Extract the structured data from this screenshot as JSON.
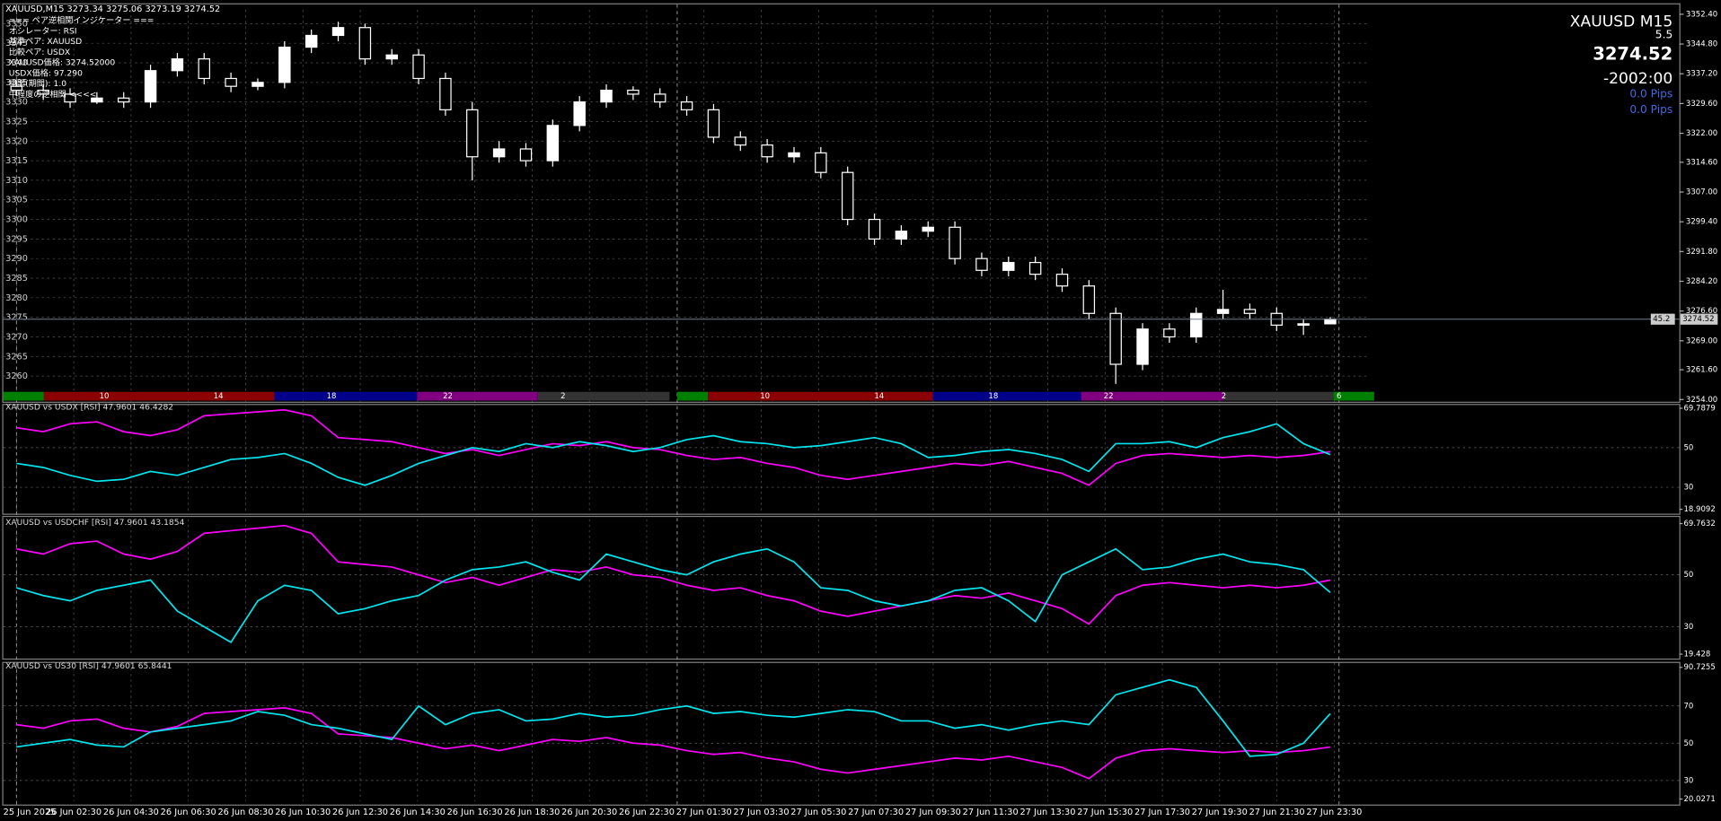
{
  "info": {
    "symbol": "XAUUSD M15",
    "spread": "5.5",
    "price": "3274.52",
    "timer": "-2002:00",
    "pips_1": "0.0 Pips",
    "pips_2": "0.0 Pips"
  },
  "overlay_lines": [
    "=== ペア逆相関インジケーター ===",
    "オシレーター: RSI",
    "基準ペア: XAUUSD",
    "比較ペア: USDX",
    "XAUUSD価格: 3274.52000",
    "USDX価格: 97.290",
    "相関(期間): 1.0",
    "中程度の逆相関 <<<<"
  ],
  "x_labels": [
    "25 Jun 2025",
    "26 Jun 02:30",
    "26 Jun 04:30",
    "26 Jun 06:30",
    "26 Jun 08:30",
    "26 Jun 10:30",
    "26 Jun 12:30",
    "26 Jun 14:30",
    "26 Jun 16:30",
    "26 Jun 18:30",
    "26 Jun 20:30",
    "26 Jun 22:30",
    "27 Jun 01:30",
    "27 Jun 03:30",
    "27 Jun 05:30",
    "27 Jun 07:30",
    "27 Jun 09:30",
    "27 Jun 11:30",
    "27 Jun 13:30",
    "27 Jun 15:30",
    "27 Jun 17:30",
    "27 Jun 19:30",
    "27 Jun 21:30",
    "27 Jun 23:30"
  ],
  "session_labels": [
    "10",
    "14",
    "18",
    "22",
    "2",
    "10",
    "14",
    "18",
    "22",
    "2",
    "6"
  ],
  "chart_data": [
    {
      "type": "candlestick",
      "title": "XAUUSD,M15  3273.34 3275.06 3273.19 3274.52",
      "color": "#ffffff",
      "open": [
        3334,
        3333,
        3332,
        3330,
        3331,
        3330,
        3338,
        3341,
        3336,
        3334,
        3335,
        3344,
        3347,
        3349,
        3341,
        3342,
        3336,
        3328,
        3316,
        3318,
        3315,
        3324,
        3330,
        3333,
        3332,
        3330,
        3328,
        3321,
        3319,
        3316,
        3317,
        3312,
        3300,
        3295,
        3297,
        3298,
        3290,
        3287,
        3289,
        3286,
        3283,
        3276,
        3263,
        3272,
        3270,
        3276,
        3277,
        3276,
        3273,
        3273.34
      ],
      "high": [
        3335.5,
        3334.5,
        3333.5,
        3332.5,
        3332.5,
        3339.5,
        3342.5,
        3342.5,
        3337.5,
        3336,
        3345.5,
        3348.5,
        3350.5,
        3350,
        3343.5,
        3343.5,
        3337.5,
        3330,
        3320,
        3319.5,
        3325.5,
        3331.5,
        3334.5,
        3334,
        3333.5,
        3331.5,
        3329.5,
        3322.5,
        3320.5,
        3318.5,
        3318.5,
        3313.5,
        3301.5,
        3298.5,
        3299.5,
        3299.5,
        3291.5,
        3290.5,
        3290.5,
        3287.5,
        3284.5,
        3277.5,
        3273.5,
        3273.5,
        3277.5,
        3282,
        3278.5,
        3277.5,
        3274.5,
        3275.06
      ],
      "low": [
        3331.5,
        3330.5,
        3328.5,
        3329.5,
        3328.5,
        3328.5,
        3336.5,
        3334.5,
        3332.5,
        3333,
        3333.5,
        3342.5,
        3345.5,
        3339.5,
        3339.5,
        3334.5,
        3326.5,
        3310,
        3314.5,
        3313.5,
        3313.5,
        3322.5,
        3328.5,
        3330.5,
        3328.5,
        3326.5,
        3319.5,
        3317.5,
        3314.5,
        3314.5,
        3310.5,
        3298.5,
        3293.5,
        3293.5,
        3295.5,
        3288.5,
        3285.5,
        3285.5,
        3284.5,
        3281.5,
        3274.5,
        3258,
        3261.5,
        3268.5,
        3268.5,
        3274.5,
        3274.5,
        3271.5,
        3270.5,
        3273.19
      ],
      "close": [
        3333,
        3332,
        3330,
        3331,
        3330,
        3338,
        3341,
        3336,
        3334,
        3335,
        3344,
        3347,
        3349,
        3341,
        3342,
        3336,
        3328,
        3316,
        3318,
        3315,
        3324,
        3330,
        3333,
        3332,
        3330,
        3328,
        3321,
        3319,
        3316,
        3317,
        3312,
        3300,
        3295,
        3297,
        3298,
        3290,
        3287,
        3289,
        3286,
        3283,
        3276,
        3263,
        3272,
        3270,
        3276,
        3277,
        3276,
        3273,
        3273.34,
        3274.52
      ],
      "ylim": [
        3254,
        3352.4
      ],
      "yticks": [
        {
          "value": 3352.4,
          "label": "3352.40"
        },
        {
          "value": 3344.8,
          "label": "3344.80"
        },
        {
          "value": 3337.2,
          "label": "3337.20"
        },
        {
          "value": 3329.6,
          "label": "3329.60"
        },
        {
          "value": 3322,
          "label": "3322.00"
        },
        {
          "value": 3314.6,
          "label": "3314.60"
        },
        {
          "value": 3307,
          "label": "3307.00"
        },
        {
          "value": 3299.4,
          "label": "3299.40"
        },
        {
          "value": 3291.8,
          "label": "3291.80"
        },
        {
          "value": 3284.2,
          "label": "3284.20"
        },
        {
          "value": 3276.6,
          "label": "3276.60"
        },
        {
          "value": 3269,
          "label": "3269.00"
        },
        {
          "value": 3261.6,
          "label": "3261.60"
        },
        {
          "value": 3254,
          "label": "3254.00"
        }
      ],
      "left_yticks": [
        3350,
        3345,
        3340,
        3335,
        3330,
        3325,
        3320,
        3315,
        3310,
        3305,
        3300,
        3295,
        3290,
        3285,
        3280,
        3275,
        3270,
        3265,
        3260
      ],
      "grid": true,
      "price_line": 3274.52,
      "price_tag": "45.2"
    },
    {
      "type": "line",
      "title": "XAUUSD vs USDX [RSI] 47.9601 46.4282",
      "series": [
        {
          "color": "#ff00ff",
          "values": [
            60,
            58,
            62,
            63,
            58,
            56,
            59,
            66,
            67,
            68,
            69,
            66,
            55,
            54,
            53,
            50,
            47,
            49,
            46,
            49,
            52,
            51,
            53,
            50,
            49,
            46,
            44,
            45,
            42,
            40,
            36,
            34,
            36,
            38,
            40,
            42,
            41,
            43,
            40,
            37,
            31,
            42,
            46,
            47,
            46,
            45,
            46,
            45,
            46,
            47.9601
          ]
        },
        {
          "color": "#00e5ee",
          "values": [
            42,
            40,
            36,
            33,
            34,
            38,
            36,
            40,
            44,
            45,
            47,
            42,
            35,
            31,
            36,
            42,
            46,
            50,
            48,
            52,
            50,
            53,
            51,
            48,
            50,
            54,
            56,
            53,
            52,
            50,
            51,
            53,
            55,
            52,
            45,
            46,
            48,
            49,
            47,
            44,
            38,
            52,
            52,
            53,
            50,
            55,
            58,
            62,
            52,
            46.4282
          ]
        }
      ],
      "ylim": [
        18.9092,
        69.7879
      ],
      "yticks": [
        69.7879,
        50,
        30,
        18.9092
      ],
      "grid": true
    },
    {
      "type": "line",
      "title": "XAUUSD vs USDCHF [RSI] 47.9601 43.1854",
      "series": [
        {
          "color": "#ff00ff",
          "values": [
            60,
            58,
            62,
            63,
            58,
            56,
            59,
            66,
            67,
            68,
            69,
            66,
            55,
            54,
            53,
            50,
            47,
            49,
            46,
            49,
            52,
            51,
            53,
            50,
            49,
            46,
            44,
            45,
            42,
            40,
            36,
            34,
            36,
            38,
            40,
            42,
            41,
            43,
            40,
            37,
            31,
            42,
            46,
            47,
            46,
            45,
            46,
            45,
            46,
            47.9601
          ]
        },
        {
          "color": "#00e5ee",
          "values": [
            45,
            42,
            40,
            44,
            46,
            48,
            36,
            30,
            24,
            40,
            46,
            44,
            35,
            37,
            40,
            42,
            48,
            52,
            53,
            55,
            51,
            48,
            58,
            55,
            52,
            50,
            55,
            58,
            60,
            55,
            45,
            44,
            40,
            38,
            40,
            44,
            45,
            40,
            32,
            50,
            55,
            60,
            52,
            53,
            56,
            58,
            55,
            54,
            52,
            43.1854
          ]
        }
      ],
      "ylim": [
        19.428,
        69.7632
      ],
      "yticks": [
        69.7632,
        50,
        30,
        19.428
      ],
      "grid": true
    },
    {
      "type": "line",
      "title": "XAUUSD vs US30 [RSI] 47.9601 65.8441",
      "series": [
        {
          "color": "#ff00ff",
          "values": [
            60,
            58,
            62,
            63,
            58,
            56,
            59,
            66,
            67,
            68,
            69,
            66,
            55,
            54,
            53,
            50,
            47,
            49,
            46,
            49,
            52,
            51,
            53,
            50,
            49,
            46,
            44,
            45,
            42,
            40,
            36,
            34,
            36,
            38,
            40,
            42,
            41,
            43,
            40,
            37,
            31,
            42,
            46,
            47,
            46,
            45,
            46,
            45,
            46,
            47.9601
          ]
        },
        {
          "color": "#00e5ee",
          "values": [
            48,
            50,
            52,
            49,
            48,
            56,
            58,
            60,
            62,
            67,
            65,
            60,
            58,
            55,
            52,
            70,
            60,
            66,
            68,
            62,
            63,
            66,
            64,
            65,
            68,
            70,
            66,
            67,
            65,
            64,
            66,
            68,
            67,
            62,
            62,
            58,
            60,
            57,
            60,
            62,
            60,
            76,
            80,
            84,
            80,
            62,
            43,
            44,
            50,
            65.8441
          ]
        }
      ],
      "ylim": [
        20.0271,
        90.7255
      ],
      "yticks": [
        90.7255,
        70,
        50,
        30,
        20.0271
      ],
      "grid": true
    }
  ]
}
